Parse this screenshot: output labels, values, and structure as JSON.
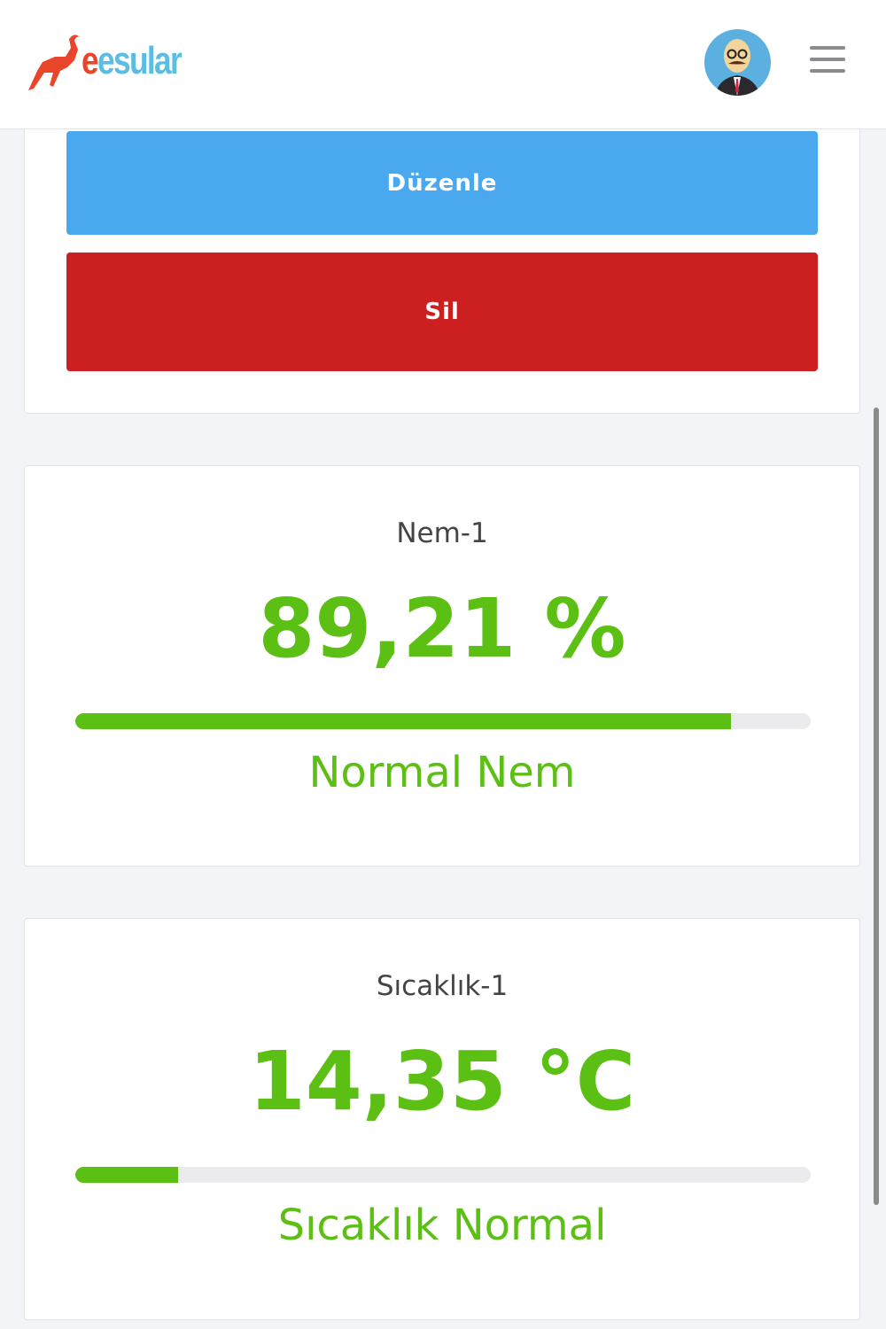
{
  "header": {
    "logo_text": "esular",
    "avatar_alt": "user-avatar",
    "menu_icon": "hamburger-icon"
  },
  "actions": {
    "edit_label": "Düzenle",
    "delete_label": "Sil",
    "edit_color": "#4aa8ef",
    "delete_color": "#cc2020"
  },
  "sensors": [
    {
      "title": "Nem-1",
      "value": "89,21 %",
      "progress_percent": 89.21,
      "status": "Normal Nem",
      "color": "#5cbf14"
    },
    {
      "title": "Sıcaklık-1",
      "value": "14,35 °C",
      "progress_percent": 14,
      "status": "Sıcaklık Normal",
      "color": "#5cbf14"
    }
  ]
}
